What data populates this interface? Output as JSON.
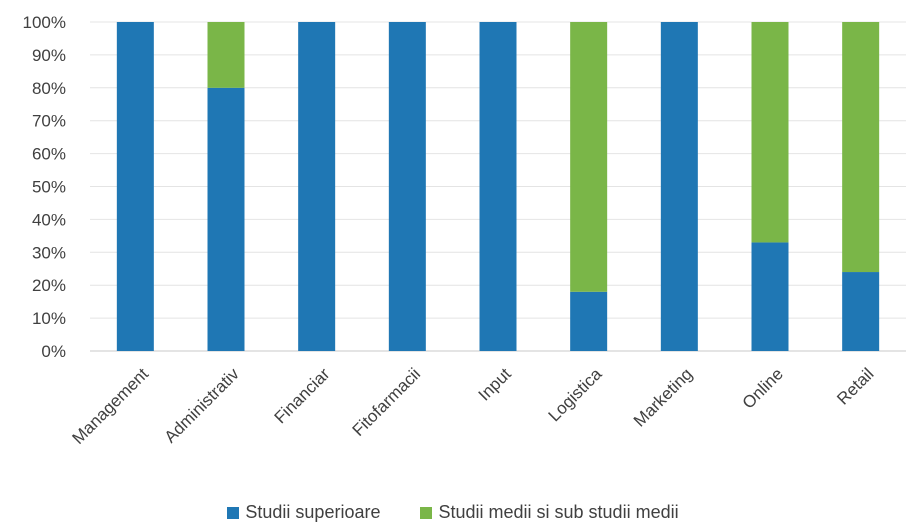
{
  "chart_data": {
    "type": "bar",
    "stacked": true,
    "percent": true,
    "categories": [
      "Management",
      "Administrativ",
      "Financiar",
      "Fitofarmacii",
      "Input",
      "Logistica",
      "Marketing",
      "Online",
      "Retail"
    ],
    "series": [
      {
        "name": "Studii superioare",
        "color": "#1f77b4",
        "values": [
          100,
          80,
          100,
          100,
          100,
          18,
          100,
          33,
          24
        ]
      },
      {
        "name": "Studii medii si sub studii medii",
        "color": "#7ab648",
        "values": [
          0,
          20,
          0,
          0,
          0,
          82,
          0,
          67,
          76
        ]
      }
    ],
    "ylim": [
      0,
      100
    ],
    "yticks": [
      "0%",
      "10%",
      "20%",
      "30%",
      "40%",
      "50%",
      "60%",
      "70%",
      "80%",
      "90%",
      "100%"
    ],
    "grid": true,
    "legend": "bottom"
  }
}
